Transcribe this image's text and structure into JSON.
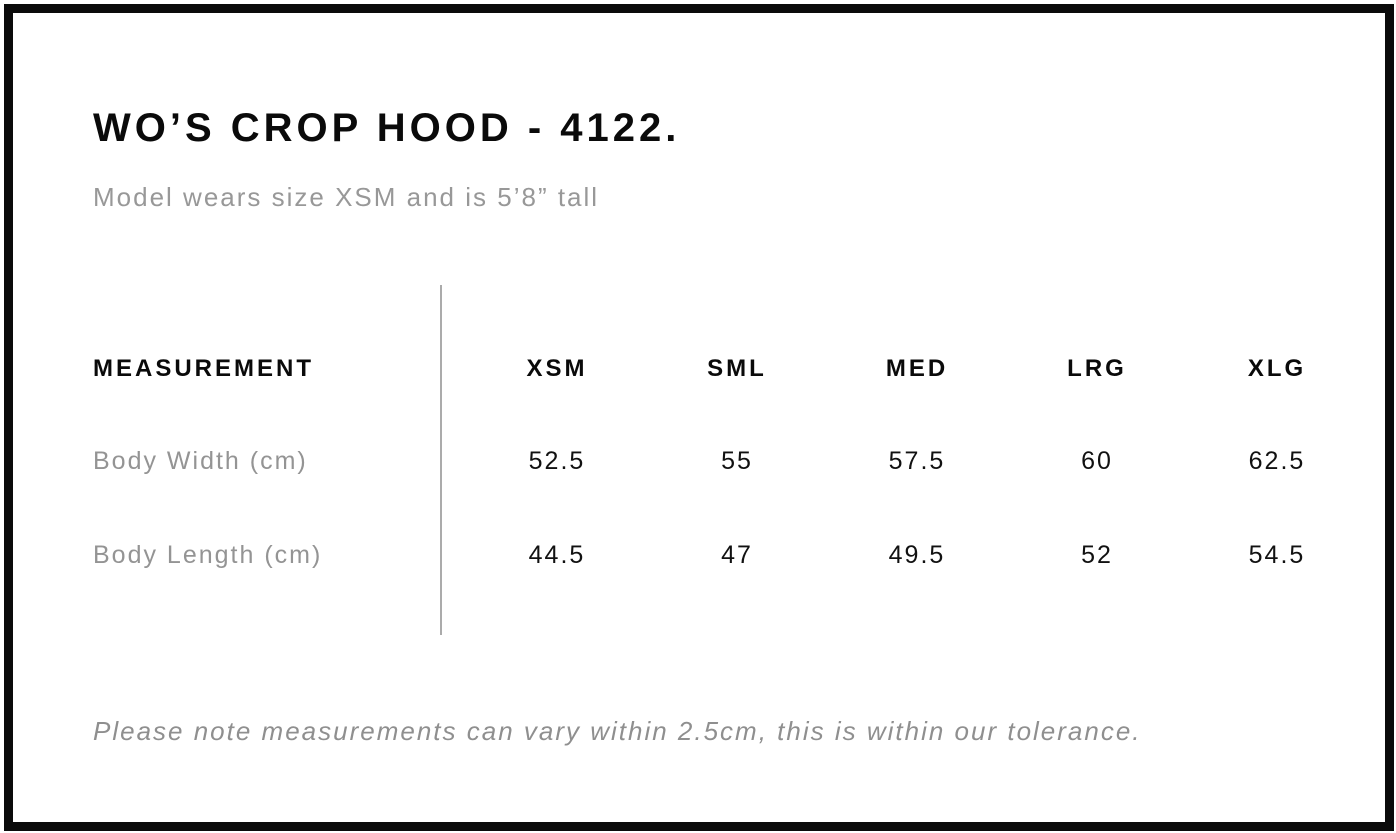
{
  "page": {
    "kind": "size-chart",
    "colors": {
      "text": "#0a0a0a",
      "muted_text": "#949494",
      "divider": "#ababab",
      "frame_border": "#0b0b0b",
      "background": "#ffffff"
    }
  },
  "chart_data": {
    "type": "table",
    "title": "WO’S CROP HOOD - 4122.",
    "subtitle": "Model wears size XSM and is 5’8” tall",
    "columns": [
      "MEASUREMENT",
      "XSM",
      "SML",
      "MED",
      "LRG",
      "XLG"
    ],
    "rows": [
      {
        "label": "Body Width (cm)",
        "values": [
          "52.5",
          "55",
          "57.5",
          "60",
          "62.5"
        ]
      },
      {
        "label": "Body Length (cm)",
        "values": [
          "44.5",
          "47",
          "49.5",
          "52",
          "54.5"
        ]
      }
    ],
    "note": "Please note measurements can vary within 2.5cm, this is within our tolerance."
  }
}
